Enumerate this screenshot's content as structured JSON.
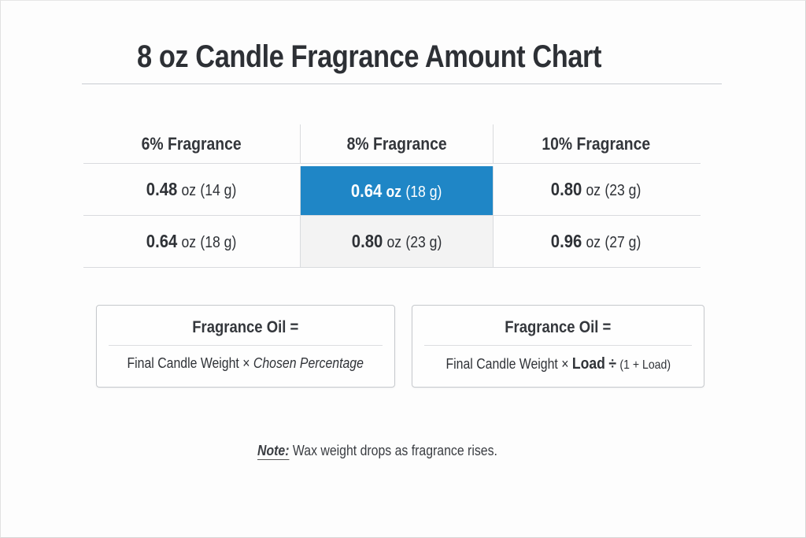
{
  "title": "8 oz Candle Fragrance Amount Chart",
  "table": {
    "headers": [
      "6% Fragrance",
      "8% Fragrance",
      "10% Fragrance"
    ],
    "rows": [
      [
        {
          "oz": "0.48",
          "unit": "oz",
          "grams": "(14 g)"
        },
        {
          "oz": "0.64",
          "unit": "oz",
          "grams": "(18 g)"
        },
        {
          "oz": "0.80",
          "unit": "oz",
          "grams": "(23 g)"
        }
      ],
      [
        {
          "oz": "0.64",
          "unit": "oz",
          "grams": "(18 g)"
        },
        {
          "oz": "0.80",
          "unit": "oz",
          "grams": "(23 g)"
        },
        {
          "oz": "0.96",
          "unit": "oz",
          "grams": "(27 g)"
        }
      ]
    ],
    "highlight_color": "#1f86c6"
  },
  "formulas": [
    {
      "head": "Fragrance Oil =",
      "expr_plain": "Final Candle Weight ×",
      "expr_italic": "Chosen Percentage"
    },
    {
      "head": "Fragrance Oil =",
      "expr_plain": "Final Candle Weight ×",
      "expr_bold": "Load",
      "expr_div": "÷",
      "expr_tail": "(1 + Load)"
    }
  ],
  "note": {
    "label": "Note:",
    "text": "Wax weight drops as fragrance rises."
  },
  "chart_data": {
    "type": "table",
    "title": "8 oz Candle Fragrance Amount Chart",
    "columns": [
      "6% Fragrance",
      "8% Fragrance",
      "10% Fragrance"
    ],
    "rows": [
      {
        "oz": [
          0.48,
          0.64,
          0.8
        ],
        "grams": [
          14,
          18,
          23
        ]
      },
      {
        "oz": [
          0.64,
          0.8,
          0.96
        ],
        "grams": [
          18,
          23,
          27
        ]
      }
    ],
    "highlighted_cell": {
      "row": 0,
      "column": "8% Fragrance",
      "value": "0.64 oz (18 g)"
    },
    "annotations": [
      "Fragrance Oil = Final Candle Weight × Chosen Percentage",
      "Fragrance Oil = Final Candle Weight × Load ÷ (1 + Load)",
      "Note: Wax weight drops as fragrance rises."
    ]
  }
}
